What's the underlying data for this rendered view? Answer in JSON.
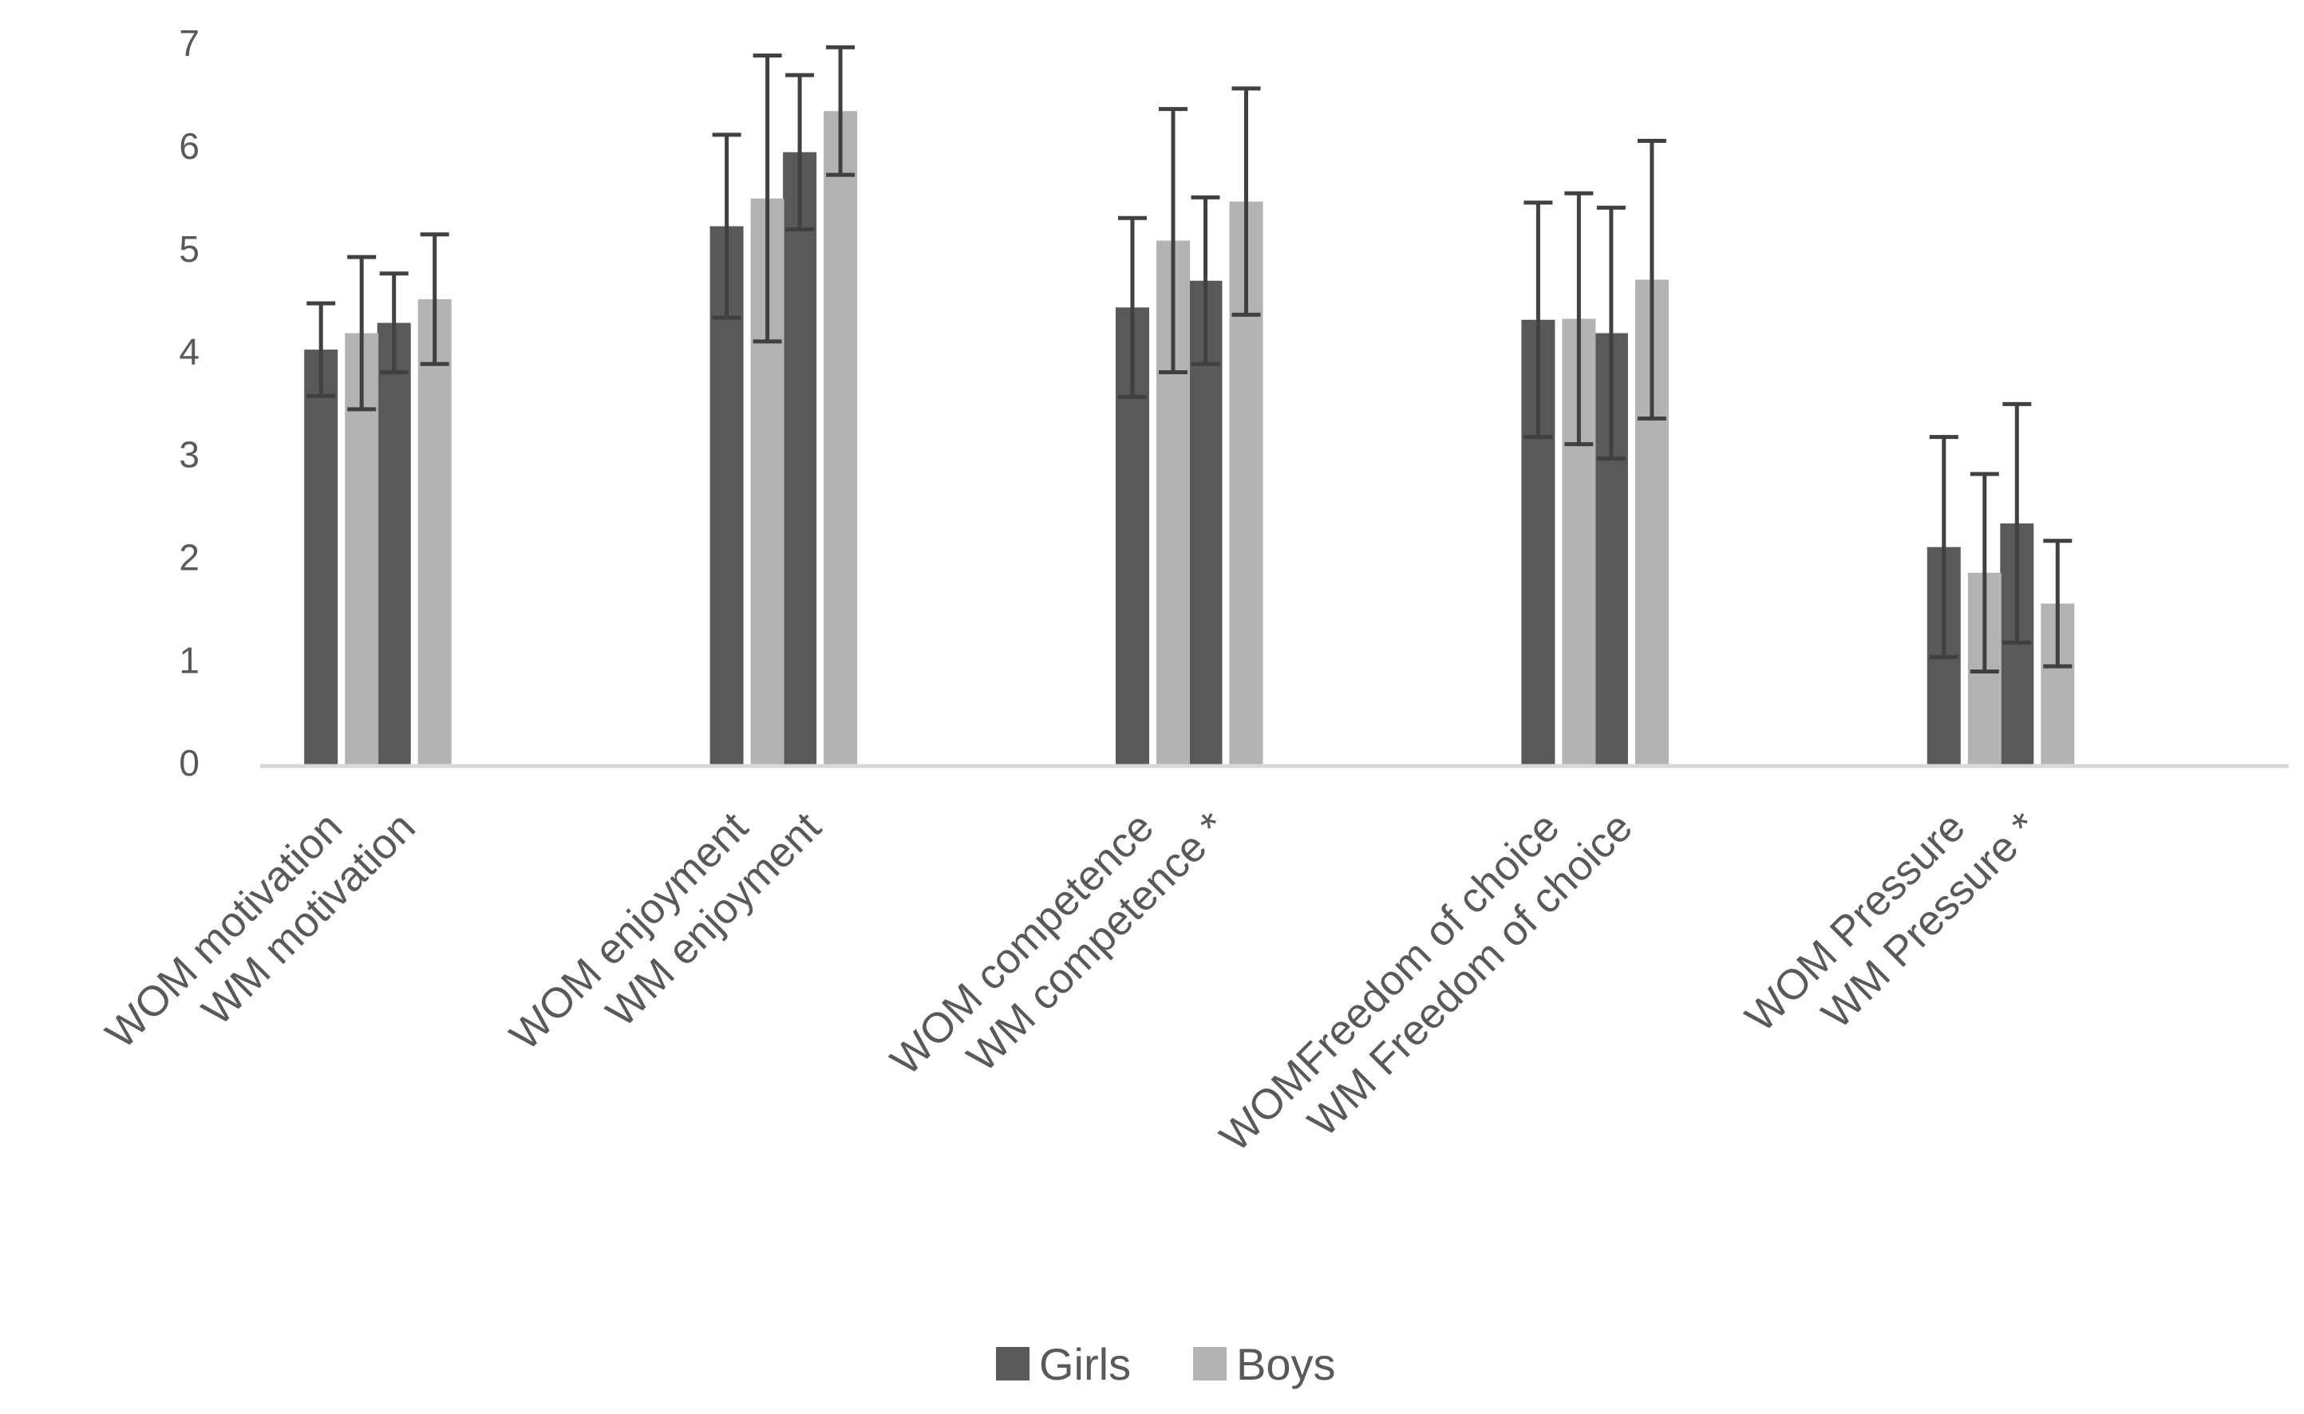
{
  "chart_data": {
    "type": "bar",
    "title": "",
    "xlabel": "",
    "ylabel": "",
    "ylim": [
      0,
      7
    ],
    "yticks": [
      0,
      1,
      2,
      3,
      4,
      5,
      6,
      7
    ],
    "grid": false,
    "legend_position": "bottom-center",
    "groups": [
      [
        "WOM motivation",
        "WM motivation"
      ],
      [
        "WOM enjoyment",
        "WM enjoyment"
      ],
      [
        "WOM competence",
        "WM competence *"
      ],
      [
        "WOMFreedom of choice",
        "WM Freedom of choice"
      ],
      [
        "WOM Pressure",
        "WM Pressure *"
      ]
    ],
    "categories": [
      "WOM motivation",
      "WM motivation",
      "WOM enjoyment",
      "WM enjoyment",
      "WOM competence",
      "WM competence *",
      "WOMFreedom of choice",
      "WM Freedom of choice",
      "WOM Pressure",
      "WM Pressure *"
    ],
    "series": [
      {
        "name": "Girls",
        "color": "#595959",
        "values": [
          4.05,
          4.31,
          5.25,
          5.97,
          4.46,
          4.72,
          4.34,
          4.21,
          2.13,
          2.36
        ],
        "error": [
          0.45,
          0.48,
          0.89,
          0.75,
          0.87,
          0.81,
          1.14,
          1.22,
          1.07,
          1.16
        ]
      },
      {
        "name": "Boys",
        "color": "#b3b3b3",
        "values": [
          4.21,
          4.54,
          5.52,
          6.37,
          5.11,
          5.49,
          4.35,
          4.73,
          1.88,
          1.58
        ],
        "error": [
          0.74,
          0.63,
          1.39,
          0.62,
          1.28,
          1.1,
          1.22,
          1.35,
          0.96,
          0.61
        ]
      }
    ],
    "axis_color": "#d9d9d9",
    "error_bar_color": "#404040"
  }
}
